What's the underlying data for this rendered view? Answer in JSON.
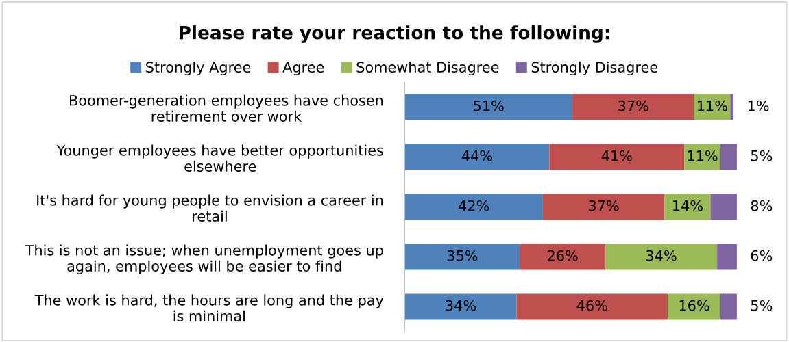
{
  "chart_data": {
    "type": "bar",
    "orientation": "horizontal",
    "stacked": true,
    "title": "Please rate your reaction to the following:",
    "categories": [
      "Boomer-generation employees have chosen\nretirement over work",
      "Younger employees have better opportunities\nelsewhere",
      "It's hard for young people to envision a career in\nretail",
      "This is not an issue; when unemployment goes up\nagain, employees will be easier to find",
      "The work is hard, the hours are long and the pay\nis minimal"
    ],
    "series": [
      {
        "name": "Strongly Agree",
        "color": "#4f81bd",
        "values": [
          51,
          44,
          42,
          35,
          34
        ],
        "value_labels": [
          "51%",
          "44%",
          "42%",
          "35%",
          "34%"
        ]
      },
      {
        "name": "Agree",
        "color": "#c0504d",
        "values": [
          37,
          41,
          37,
          26,
          46
        ],
        "value_labels": [
          "37%",
          "41%",
          "37%",
          "26%",
          "46%"
        ]
      },
      {
        "name": "Somewhat Disagree",
        "color": "#9bbb59",
        "values": [
          11,
          11,
          14,
          34,
          16
        ],
        "value_labels": [
          "11%",
          "11%",
          "14%",
          "34%",
          "16%"
        ]
      },
      {
        "name": "Strongly Disagree",
        "color": "#8064a2",
        "values": [
          1,
          5,
          8,
          6,
          5
        ],
        "value_labels": [
          "1%",
          "5%",
          "8%",
          "6%",
          "5%"
        ]
      }
    ],
    "legend": "top",
    "grid": false
  }
}
